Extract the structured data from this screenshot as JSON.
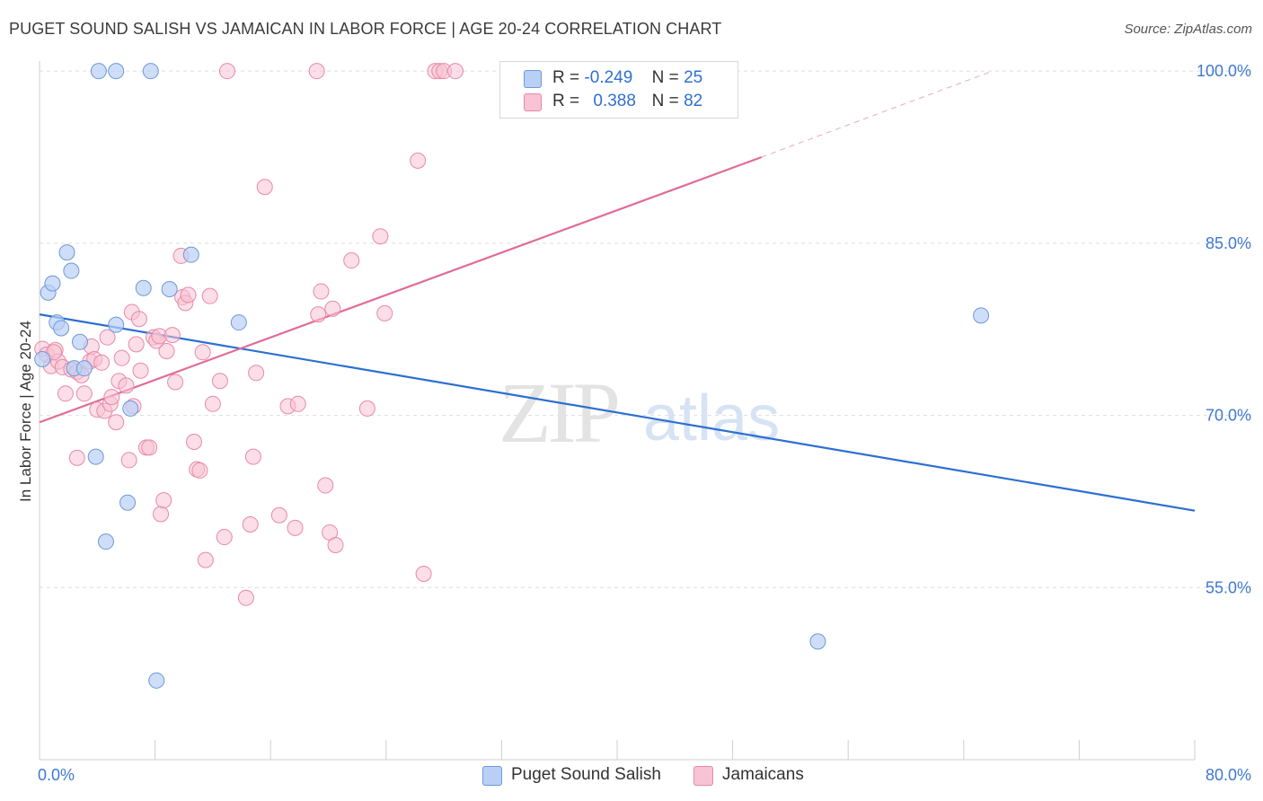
{
  "title": "PUGET SOUND SALISH VS JAMAICAN IN LABOR FORCE | AGE 20-24 CORRELATION CHART",
  "source": "Source: ZipAtlas.com",
  "watermark": {
    "zip": "ZIP",
    "atlas": "atlas"
  },
  "legend": {
    "r_label": "R =",
    "n_label": "N =",
    "series1": {
      "r": "-0.249",
      "n": "25"
    },
    "series2": {
      "r": "0.388",
      "n": "82"
    }
  },
  "colors": {
    "blue_fill": "#b9d0f5",
    "blue_stroke": "#6e98d8",
    "blue_line": "#2b6fd1",
    "pink_fill": "#f8c3d4",
    "pink_stroke": "#e889a8",
    "pink_line": "#e06c97",
    "axis_text": "#3f78d1",
    "grid": "#dedede"
  },
  "chart_data": {
    "type": "scatter",
    "title": "PUGET SOUND SALISH VS JAMAICAN IN LABOR FORCE | AGE 20-24 CORRELATION CHART",
    "xlabel": "",
    "ylabel": "In Labor Force | Age 20-24",
    "xlim": [
      0,
      80
    ],
    "ylim": [
      40,
      101.5
    ],
    "x_tick_labels": [
      "0.0%",
      "80.0%"
    ],
    "y_ticks": [
      55,
      70,
      85,
      100
    ],
    "y_tick_labels": [
      "55.0%",
      "70.0%",
      "85.0%",
      "100.0%"
    ],
    "series": [
      {
        "name": "Puget Sound Salish",
        "r": -0.249,
        "n": 25,
        "trend": {
          "x": [
            0,
            80
          ],
          "y": [
            78.8,
            61.7
          ]
        },
        "points": [
          {
            "x": 0.2,
            "y": 74.9
          },
          {
            "x": 0.6,
            "y": 80.7
          },
          {
            "x": 0.9,
            "y": 81.5
          },
          {
            "x": 1.2,
            "y": 78.1
          },
          {
            "x": 1.5,
            "y": 77.6
          },
          {
            "x": 1.9,
            "y": 84.2
          },
          {
            "x": 2.2,
            "y": 82.6
          },
          {
            "x": 2.4,
            "y": 74.1
          },
          {
            "x": 2.8,
            "y": 76.4
          },
          {
            "x": 3.1,
            "y": 74.1
          },
          {
            "x": 3.9,
            "y": 66.4
          },
          {
            "x": 4.1,
            "y": 100.0
          },
          {
            "x": 4.6,
            "y": 59.0
          },
          {
            "x": 5.3,
            "y": 100.0
          },
          {
            "x": 5.3,
            "y": 77.9
          },
          {
            "x": 6.1,
            "y": 62.4
          },
          {
            "x": 6.3,
            "y": 70.6
          },
          {
            "x": 7.2,
            "y": 81.1
          },
          {
            "x": 7.7,
            "y": 100.0
          },
          {
            "x": 8.1,
            "y": 46.9
          },
          {
            "x": 9.0,
            "y": 81.0
          },
          {
            "x": 10.5,
            "y": 84.0
          },
          {
            "x": 13.8,
            "y": 78.1
          },
          {
            "x": 53.9,
            "y": 50.3
          },
          {
            "x": 65.2,
            "y": 78.7
          }
        ]
      },
      {
        "name": "Jamaicans",
        "r": 0.388,
        "n": 82,
        "trend": {
          "x": [
            0,
            50
          ],
          "y": [
            69.4,
            92.5
          ]
        },
        "trend_dashed": {
          "x": [
            50,
            66
          ],
          "y": [
            92.5,
            100.0
          ]
        },
        "points": [
          {
            "x": 0.2,
            "y": 75.8
          },
          {
            "x": 0.5,
            "y": 75.3
          },
          {
            "x": 0.8,
            "y": 74.3
          },
          {
            "x": 1.1,
            "y": 75.7
          },
          {
            "x": 1.3,
            "y": 74.7
          },
          {
            "x": 1.6,
            "y": 74.2
          },
          {
            "x": 1.8,
            "y": 71.9
          },
          {
            "x": 2.2,
            "y": 74.0
          },
          {
            "x": 2.6,
            "y": 73.8
          },
          {
            "x": 2.6,
            "y": 66.3
          },
          {
            "x": 3.1,
            "y": 71.9
          },
          {
            "x": 3.5,
            "y": 74.7
          },
          {
            "x": 3.6,
            "y": 76.0
          },
          {
            "x": 3.8,
            "y": 74.9
          },
          {
            "x": 4.0,
            "y": 70.5
          },
          {
            "x": 4.3,
            "y": 74.6
          },
          {
            "x": 4.5,
            "y": 70.4
          },
          {
            "x": 4.7,
            "y": 76.8
          },
          {
            "x": 4.9,
            "y": 71.0
          },
          {
            "x": 5.0,
            "y": 71.6
          },
          {
            "x": 5.3,
            "y": 69.4
          },
          {
            "x": 5.5,
            "y": 73.0
          },
          {
            "x": 5.7,
            "y": 75.0
          },
          {
            "x": 6.0,
            "y": 72.6
          },
          {
            "x": 6.2,
            "y": 66.1
          },
          {
            "x": 6.4,
            "y": 79.0
          },
          {
            "x": 6.7,
            "y": 76.2
          },
          {
            "x": 6.9,
            "y": 78.4
          },
          {
            "x": 7.0,
            "y": 73.9
          },
          {
            "x": 7.4,
            "y": 67.2
          },
          {
            "x": 7.6,
            "y": 67.2
          },
          {
            "x": 7.9,
            "y": 76.8
          },
          {
            "x": 8.1,
            "y": 76.5
          },
          {
            "x": 8.3,
            "y": 76.9
          },
          {
            "x": 8.4,
            "y": 61.4
          },
          {
            "x": 8.6,
            "y": 62.6
          },
          {
            "x": 8.8,
            "y": 75.6
          },
          {
            "x": 9.2,
            "y": 77.0
          },
          {
            "x": 9.4,
            "y": 72.9
          },
          {
            "x": 9.8,
            "y": 83.9
          },
          {
            "x": 9.9,
            "y": 80.3
          },
          {
            "x": 10.1,
            "y": 79.8
          },
          {
            "x": 10.3,
            "y": 80.5
          },
          {
            "x": 10.7,
            "y": 67.7
          },
          {
            "x": 10.9,
            "y": 65.3
          },
          {
            "x": 11.1,
            "y": 65.2
          },
          {
            "x": 11.3,
            "y": 75.5
          },
          {
            "x": 11.5,
            "y": 57.4
          },
          {
            "x": 11.8,
            "y": 80.4
          },
          {
            "x": 12.0,
            "y": 71.0
          },
          {
            "x": 12.5,
            "y": 73.0
          },
          {
            "x": 12.8,
            "y": 59.4
          },
          {
            "x": 13.0,
            "y": 100.0
          },
          {
            "x": 14.3,
            "y": 54.1
          },
          {
            "x": 14.6,
            "y": 60.5
          },
          {
            "x": 14.8,
            "y": 66.4
          },
          {
            "x": 15.0,
            "y": 73.7
          },
          {
            "x": 15.6,
            "y": 89.9
          },
          {
            "x": 16.6,
            "y": 61.3
          },
          {
            "x": 17.2,
            "y": 70.8
          },
          {
            "x": 17.7,
            "y": 60.2
          },
          {
            "x": 17.9,
            "y": 71.0
          },
          {
            "x": 19.2,
            "y": 100.0
          },
          {
            "x": 19.3,
            "y": 78.8
          },
          {
            "x": 19.5,
            "y": 80.8
          },
          {
            "x": 19.8,
            "y": 63.9
          },
          {
            "x": 20.1,
            "y": 59.8
          },
          {
            "x": 20.3,
            "y": 79.3
          },
          {
            "x": 20.5,
            "y": 58.7
          },
          {
            "x": 21.6,
            "y": 83.5
          },
          {
            "x": 22.7,
            "y": 70.6
          },
          {
            "x": 23.6,
            "y": 85.6
          },
          {
            "x": 23.9,
            "y": 78.9
          },
          {
            "x": 26.2,
            "y": 92.2
          },
          {
            "x": 26.6,
            "y": 56.2
          },
          {
            "x": 27.4,
            "y": 100.0
          },
          {
            "x": 27.7,
            "y": 100.0
          },
          {
            "x": 28.0,
            "y": 100.0
          },
          {
            "x": 28.8,
            "y": 100.0
          },
          {
            "x": 1.0,
            "y": 75.5
          },
          {
            "x": 2.9,
            "y": 73.5
          },
          {
            "x": 6.5,
            "y": 70.8
          }
        ]
      }
    ]
  },
  "bottom_legend": [
    "Puget Sound Salish",
    "Jamaicans"
  ]
}
